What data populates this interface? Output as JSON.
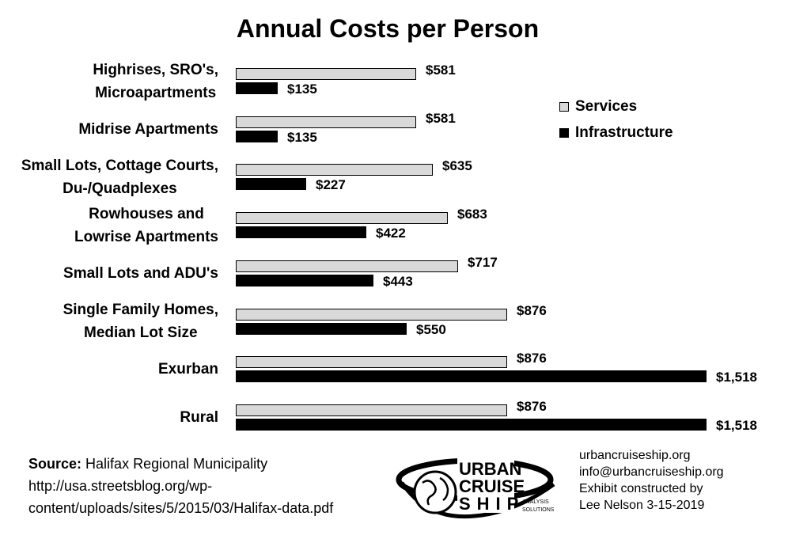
{
  "chart_data": {
    "type": "bar",
    "orientation": "horizontal",
    "title": "Annual Costs per Person",
    "categories": [
      "Highrises, SRO's,\nMicroapartments",
      "Midrise Apartments",
      "Small Lots, Cottage Courts,\nDu-/Quadplexes",
      "Rowhouses and\nLowrise Apartments",
      "Small Lots and ADU's",
      "Single Family Homes,\nMedian Lot Size",
      "Exurban",
      "Rural"
    ],
    "series": [
      {
        "name": "Services",
        "values": [
          581,
          581,
          635,
          683,
          717,
          876,
          876,
          876
        ],
        "labels": [
          "$581",
          "$581",
          "$635",
          "$683",
          "$717",
          "$876",
          "$876",
          "$876"
        ],
        "color": "#d9d9d9"
      },
      {
        "name": "Infrastructure",
        "values": [
          135,
          135,
          227,
          422,
          443,
          550,
          1518,
          1518
        ],
        "labels": [
          "$135",
          "$135",
          "$227",
          "$422",
          "$443",
          "$550",
          "$1,518",
          "$1,518"
        ],
        "color": "#000000"
      }
    ],
    "xlim": [
      0,
      1518
    ],
    "grid": false,
    "legend_position": "top-right"
  },
  "footer": {
    "source_label": "Source:",
    "source_text": "Halifax Regional Municipality",
    "source_url_line1": "http://usa.streetsblog.org/wp-",
    "source_url_line2": "content/uploads/sites/5/2015/03/Halifax-data.pdf",
    "contact_lines": [
      "urbancruiseship.org",
      "info@urbancruiseship.org",
      "Exhibit constructed by",
      "Lee Nelson 3-15-2019"
    ]
  },
  "logo": {
    "line1": "URBAN",
    "line2": "CRUISE",
    "line3": "SHIP",
    "tagline1": "ANALYSIS",
    "tagline2": "SOLUTIONS"
  }
}
